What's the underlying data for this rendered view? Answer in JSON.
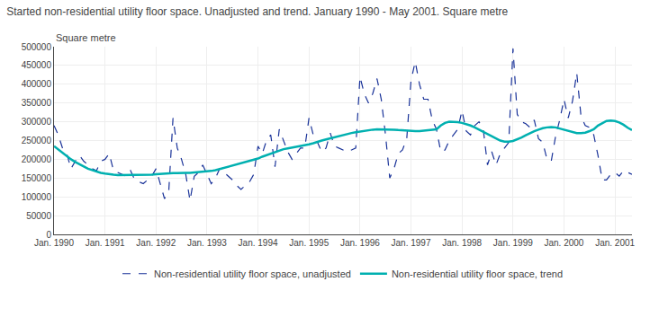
{
  "chart_data": {
    "type": "line",
    "title": "Started non-residential utility floor space. Unadjusted and trend. January 1990 - May 2001. Square metre",
    "ylabel": "Square metre",
    "categories": [
      "Jan. 1990",
      null,
      null,
      null,
      null,
      null,
      null,
      null,
      null,
      null,
      null,
      null,
      "Jan. 1991",
      null,
      null,
      null,
      null,
      null,
      null,
      null,
      null,
      null,
      null,
      null,
      "Jan. 1992",
      null,
      null,
      null,
      null,
      null,
      null,
      null,
      null,
      null,
      null,
      null,
      "Jan. 1993",
      null,
      null,
      null,
      null,
      null,
      null,
      null,
      null,
      null,
      null,
      null,
      "Jan. 1994",
      null,
      null,
      null,
      null,
      null,
      null,
      null,
      null,
      null,
      null,
      null,
      "Jan. 1995",
      null,
      null,
      null,
      null,
      null,
      null,
      null,
      null,
      null,
      null,
      null,
      "Jan. 1996",
      null,
      null,
      null,
      null,
      null,
      null,
      null,
      null,
      null,
      null,
      null,
      "Jan. 1997",
      null,
      null,
      null,
      null,
      null,
      null,
      null,
      null,
      null,
      null,
      null,
      "Jan. 1998",
      null,
      null,
      null,
      null,
      null,
      null,
      null,
      null,
      null,
      null,
      null,
      "Jan. 1999",
      null,
      null,
      null,
      null,
      null,
      null,
      null,
      null,
      null,
      null,
      null,
      "Jan. 2000",
      null,
      null,
      null,
      null,
      null,
      null,
      null,
      null,
      null,
      null,
      null,
      "Jan. 2001",
      null,
      null,
      null,
      null
    ],
    "series": [
      {
        "name": "Non-residential utility floor space, unadjusted",
        "color": "#1a3399",
        "line_style": "dashed",
        "values": [
          290000,
          265000,
          230000,
          215000,
          175000,
          195000,
          210000,
          195000,
          185000,
          175000,
          170000,
          195000,
          200000,
          215000,
          170000,
          165000,
          160000,
          155000,
          170000,
          145000,
          140000,
          135000,
          145000,
          155000,
          175000,
          135000,
          95000,
          115000,
          310000,
          230000,
          200000,
          160000,
          90000,
          155000,
          165000,
          185000,
          160000,
          135000,
          150000,
          175000,
          165000,
          155000,
          145000,
          130000,
          120000,
          130000,
          140000,
          160000,
          235000,
          215000,
          250000,
          265000,
          180000,
          280000,
          250000,
          220000,
          200000,
          215000,
          230000,
          230000,
          310000,
          265000,
          245000,
          220000,
          230000,
          270000,
          235000,
          230000,
          225000,
          220000,
          225000,
          230000,
          420000,
          375000,
          350000,
          375000,
          415000,
          360000,
          265000,
          150000,
          175000,
          215000,
          225000,
          255000,
          410000,
          460000,
          400000,
          360000,
          360000,
          305000,
          280000,
          220000,
          225000,
          250000,
          265000,
          280000,
          330000,
          275000,
          265000,
          290000,
          300000,
          280000,
          185000,
          220000,
          185000,
          215000,
          230000,
          245000,
          495000,
          320000,
          300000,
          295000,
          285000,
          305000,
          255000,
          245000,
          200000,
          195000,
          260000,
          305000,
          360000,
          310000,
          355000,
          430000,
          315000,
          290000,
          285000,
          265000,
          210000,
          145000,
          145000,
          160000,
          165000,
          155000,
          170000,
          165000,
          160000
        ]
      },
      {
        "name": "Non-residential utility floor space, trend",
        "color": "#00b0b0",
        "line_style": "solid",
        "values": [
          235000,
          226000,
          217000,
          208000,
          200000,
          193000,
          186000,
          181000,
          175000,
          171000,
          167000,
          164000,
          162000,
          160000,
          159000,
          158000,
          158000,
          158000,
          158000,
          158000,
          158000,
          158000,
          158000,
          159000,
          160000,
          161000,
          162000,
          162000,
          163000,
          163000,
          164000,
          164000,
          164000,
          165000,
          165000,
          166000,
          167000,
          169000,
          171000,
          174000,
          177000,
          180000,
          183000,
          186000,
          189000,
          192000,
          195000,
          198000,
          202000,
          207000,
          211000,
          216000,
          220000,
          224000,
          227000,
          229000,
          231000,
          233000,
          235000,
          237000,
          240000,
          243000,
          247000,
          250000,
          253000,
          256000,
          259000,
          262000,
          265000,
          268000,
          270000,
          272000,
          274000,
          276000,
          278000,
          279000,
          280000,
          280000,
          280000,
          280000,
          279000,
          278000,
          277000,
          276000,
          275000,
          275000,
          275000,
          276000,
          277000,
          278000,
          280000,
          290000,
          297000,
          300000,
          300000,
          299000,
          297000,
          294000,
          290000,
          285000,
          279000,
          273000,
          267000,
          261000,
          255000,
          250000,
          247000,
          247000,
          249000,
          253000,
          258000,
          264000,
          270000,
          275000,
          279000,
          283000,
          285000,
          286000,
          285000,
          282000,
          279000,
          276000,
          272000,
          270000,
          270000,
          271000,
          275000,
          280000,
          290000,
          297000,
          302000,
          303000,
          302000,
          298000,
          292000,
          284000,
          278000
        ]
      }
    ],
    "ylim": [
      0,
      500000
    ],
    "yticks": [
      0,
      50000,
      100000,
      150000,
      200000,
      250000,
      300000,
      350000,
      400000,
      450000,
      500000
    ],
    "grid": true,
    "legend": "bottom"
  }
}
